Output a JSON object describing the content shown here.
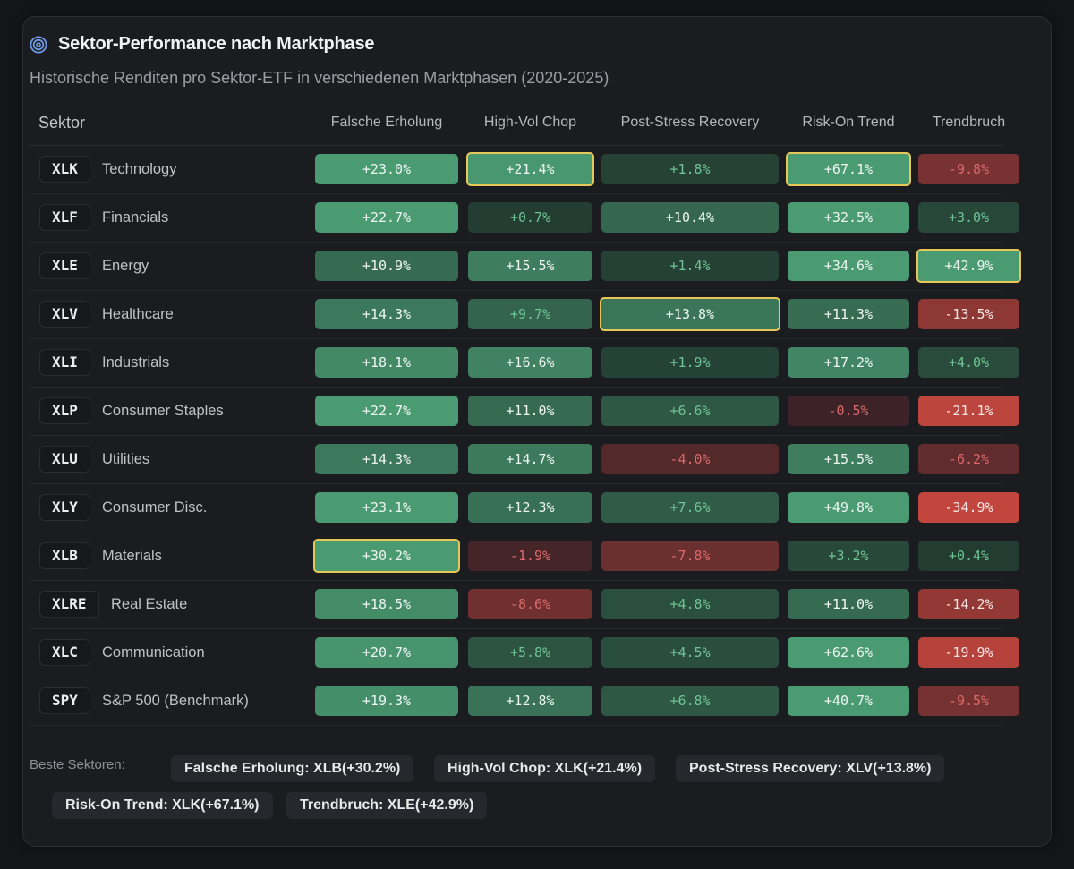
{
  "header": {
    "icon": "target-icon",
    "title": "Sektor-Performance nach Marktphase",
    "subtitle": "Historische Renditen pro Sektor-ETF in verschiedenen Marktphasen (2020-2025)"
  },
  "table": {
    "sector_header": "Sektor",
    "columns": [
      "Falsche Erholung",
      "High-Vol Chop",
      "Post-Stress Recovery",
      "Risk-On Trend",
      "Trendbruch"
    ],
    "rows": [
      {
        "ticker": "XLK",
        "name": "Technology",
        "values": [
          "+23.0%",
          "+21.4%",
          "+1.8%",
          "+67.1%",
          "-9.8%"
        ],
        "nums": [
          23.0,
          21.4,
          1.8,
          67.1,
          -9.8
        ],
        "best": [
          false,
          true,
          false,
          true,
          false
        ]
      },
      {
        "ticker": "XLF",
        "name": "Financials",
        "values": [
          "+22.7%",
          "+0.7%",
          "+10.4%",
          "+32.5%",
          "+3.0%"
        ],
        "nums": [
          22.7,
          0.7,
          10.4,
          32.5,
          3.0
        ],
        "best": [
          false,
          false,
          false,
          false,
          false
        ]
      },
      {
        "ticker": "XLE",
        "name": "Energy",
        "values": [
          "+10.9%",
          "+15.5%",
          "+1.4%",
          "+34.6%",
          "+42.9%"
        ],
        "nums": [
          10.9,
          15.5,
          1.4,
          34.6,
          42.9
        ],
        "best": [
          false,
          false,
          false,
          false,
          true
        ]
      },
      {
        "ticker": "XLV",
        "name": "Healthcare",
        "values": [
          "+14.3%",
          "+9.7%",
          "+13.8%",
          "+11.3%",
          "-13.5%"
        ],
        "nums": [
          14.3,
          9.7,
          13.8,
          11.3,
          -13.5
        ],
        "best": [
          false,
          false,
          true,
          false,
          false
        ]
      },
      {
        "ticker": "XLI",
        "name": "Industrials",
        "values": [
          "+18.1%",
          "+16.6%",
          "+1.9%",
          "+17.2%",
          "+4.0%"
        ],
        "nums": [
          18.1,
          16.6,
          1.9,
          17.2,
          4.0
        ],
        "best": [
          false,
          false,
          false,
          false,
          false
        ]
      },
      {
        "ticker": "XLP",
        "name": "Consumer Staples",
        "values": [
          "+22.7%",
          "+11.0%",
          "+6.6%",
          "-0.5%",
          "-21.1%"
        ],
        "nums": [
          22.7,
          11.0,
          6.6,
          -0.5,
          -21.1
        ],
        "best": [
          false,
          false,
          false,
          false,
          false
        ]
      },
      {
        "ticker": "XLU",
        "name": "Utilities",
        "values": [
          "+14.3%",
          "+14.7%",
          "-4.0%",
          "+15.5%",
          "-6.2%"
        ],
        "nums": [
          14.3,
          14.7,
          -4.0,
          15.5,
          -6.2
        ],
        "best": [
          false,
          false,
          false,
          false,
          false
        ]
      },
      {
        "ticker": "XLY",
        "name": "Consumer Disc.",
        "values": [
          "+23.1%",
          "+12.3%",
          "+7.6%",
          "+49.8%",
          "-34.9%"
        ],
        "nums": [
          23.1,
          12.3,
          7.6,
          49.8,
          -34.9
        ],
        "best": [
          false,
          false,
          false,
          false,
          false
        ]
      },
      {
        "ticker": "XLB",
        "name": "Materials",
        "values": [
          "+30.2%",
          "-1.9%",
          "-7.8%",
          "+3.2%",
          "+0.4%"
        ],
        "nums": [
          30.2,
          -1.9,
          -7.8,
          3.2,
          0.4
        ],
        "best": [
          true,
          false,
          false,
          false,
          false
        ]
      },
      {
        "ticker": "XLRE",
        "name": "Real Estate",
        "values": [
          "+18.5%",
          "-8.6%",
          "+4.8%",
          "+11.0%",
          "-14.2%"
        ],
        "nums": [
          18.5,
          -8.6,
          4.8,
          11.0,
          -14.2
        ],
        "best": [
          false,
          false,
          false,
          false,
          false
        ]
      },
      {
        "ticker": "XLC",
        "name": "Communication",
        "values": [
          "+20.7%",
          "+5.8%",
          "+4.5%",
          "+62.6%",
          "-19.9%"
        ],
        "nums": [
          20.7,
          5.8,
          4.5,
          62.6,
          -19.9
        ],
        "best": [
          false,
          false,
          false,
          false,
          false
        ]
      },
      {
        "ticker": "SPY",
        "name": "S&P 500 (Benchmark)",
        "values": [
          "+19.3%",
          "+12.8%",
          "+6.8%",
          "+40.7%",
          "-9.5%"
        ],
        "nums": [
          19.3,
          12.8,
          6.8,
          40.7,
          -9.5
        ],
        "best": [
          false,
          false,
          false,
          false,
          false
        ]
      }
    ]
  },
  "footer": {
    "label": "Beste Sektoren:",
    "chips": [
      "Falsche Erholung: XLB(+30.2%)",
      "High-Vol Chop: XLK(+21.4%)",
      "Post-Stress Recovery: XLV(+13.8%)",
      "Risk-On Trend: XLK(+67.1%)",
      "Trendbruch: XLE(+42.9%)"
    ]
  },
  "colors": {
    "positive_strong": "#4a9a72",
    "positive_weak": "#223a30",
    "negative_strong": "#c2463e",
    "negative_weak": "#3a2226",
    "highlight": "#e6c757"
  }
}
